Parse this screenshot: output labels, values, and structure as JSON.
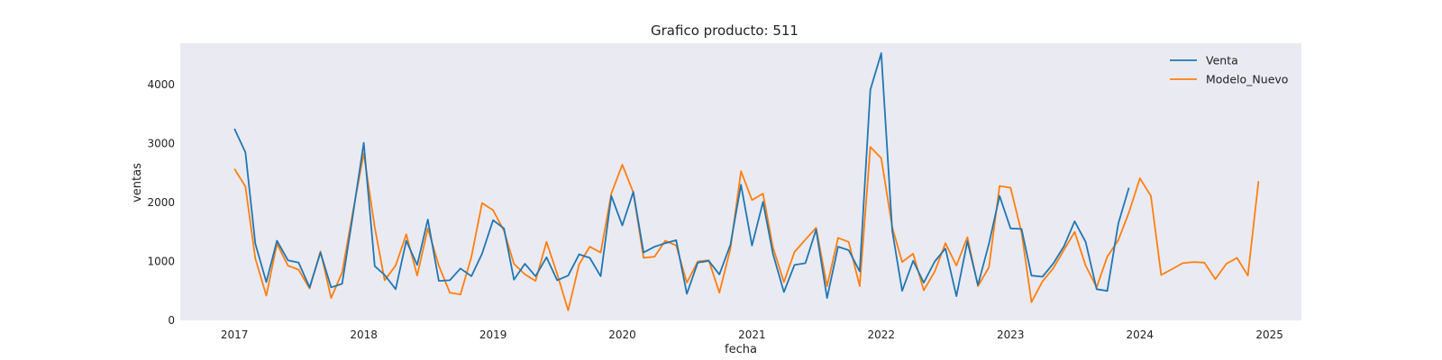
{
  "chart_data": {
    "type": "line",
    "title": "Grafico producto: 511",
    "xlabel": "fecha",
    "ylabel": "ventas",
    "xlim": [
      "2016-08-01",
      "2025-04-01"
    ],
    "ylim": [
      0,
      4700
    ],
    "xticks": [
      "2017",
      "2018",
      "2019",
      "2020",
      "2021",
      "2022",
      "2023",
      "2024",
      "2025"
    ],
    "yticks": [
      "0",
      "1000",
      "2000",
      "3000",
      "4000"
    ],
    "grid": false,
    "legend": "top-right",
    "background": "#eaeaf2",
    "start": "2017-01",
    "series": [
      {
        "name": "Venta",
        "color": "#1f77b4",
        "values": [
          3250,
          2850,
          1300,
          650,
          1350,
          1020,
          980,
          560,
          1150,
          560,
          620,
          1770,
          3010,
          920,
          770,
          530,
          1350,
          940,
          1710,
          670,
          680,
          880,
          750,
          1130,
          1700,
          1560,
          690,
          960,
          750,
          1070,
          680,
          760,
          1120,
          1060,
          750,
          2110,
          1610,
          2180,
          1150,
          1250,
          1310,
          1360,
          450,
          980,
          1010,
          780,
          1280,
          2300,
          1270,
          2010,
          1130,
          480,
          940,
          970,
          1540,
          380,
          1250,
          1190,
          830,
          3910,
          4530,
          1520,
          500,
          1010,
          640,
          1000,
          1220,
          410,
          1340,
          600,
          1300,
          2110,
          1560,
          1550,
          760,
          740,
          960,
          1260,
          1680,
          1330,
          530,
          500,
          1640,
          2250
        ]
      },
      {
        "name": "Modelo_Nuevo",
        "color": "#ff7f0e",
        "values": [
          2570,
          2270,
          1050,
          420,
          1300,
          930,
          860,
          540,
          1170,
          380,
          810,
          1830,
          2830,
          1580,
          680,
          930,
          1460,
          760,
          1560,
          930,
          470,
          440,
          1080,
          1990,
          1870,
          1520,
          960,
          780,
          670,
          1330,
          790,
          170,
          950,
          1250,
          1150,
          2150,
          2640,
          2170,
          1060,
          1080,
          1350,
          1270,
          640,
          1000,
          1020,
          470,
          1210,
          2530,
          2040,
          2150,
          1240,
          650,
          1160,
          1370,
          1570,
          580,
          1400,
          1330,
          580,
          2940,
          2750,
          1580,
          990,
          1130,
          510,
          830,
          1310,
          930,
          1410,
          580,
          900,
          2280,
          2250,
          1490,
          310,
          660,
          880,
          1200,
          1500,
          930,
          560,
          1080,
          1360,
          1830,
          2410,
          2110,
          770,
          870,
          970,
          990,
          980,
          700,
          960,
          1060,
          760,
          2360
        ]
      }
    ]
  }
}
